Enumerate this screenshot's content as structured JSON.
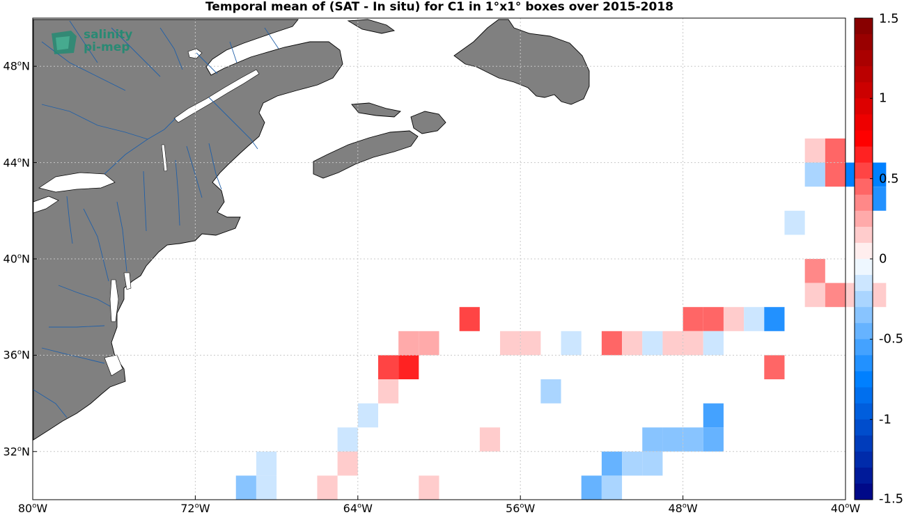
{
  "title": "Temporal mean of (SAT - In situ) for C1 in 1°x1° boxes over 2015-2018",
  "logo": {
    "line1": "salinity",
    "line2": "pi-mep",
    "icon": "salinity-pimep-logo-icon"
  },
  "colors": {
    "land": "#808080",
    "coast": "#000000",
    "rivers": "#1f5fa8",
    "grid": "#c8c8c8",
    "ocean": "#ffffff",
    "logo": "#1a8c72"
  },
  "chart_data": {
    "type": "heatmap",
    "units_note": "",
    "xlim": [
      -80,
      -40
    ],
    "ylim": [
      30,
      50
    ],
    "cell_size_deg": 1,
    "x_ticks": [
      {
        "value": -80,
        "label": "80",
        "suffix": "W"
      },
      {
        "value": -72,
        "label": "72",
        "suffix": "W"
      },
      {
        "value": -64,
        "label": "64",
        "suffix": "W"
      },
      {
        "value": -56,
        "label": "56",
        "suffix": "W"
      },
      {
        "value": -48,
        "label": "48",
        "suffix": "W"
      },
      {
        "value": -40,
        "label": "40",
        "suffix": "W"
      }
    ],
    "y_ticks": [
      {
        "value": 32,
        "label": "32",
        "suffix": "N"
      },
      {
        "value": 36,
        "label": "36",
        "suffix": "N"
      },
      {
        "value": 40,
        "label": "40",
        "suffix": "N"
      },
      {
        "value": 44,
        "label": "44",
        "suffix": "N"
      },
      {
        "value": 48,
        "label": "48",
        "suffix": "N"
      }
    ],
    "grid": true,
    "colorbar": {
      "range": [
        -1.5,
        1.5
      ],
      "steps": 30,
      "ticks": [
        {
          "value": 1.5,
          "label": "1.5"
        },
        {
          "value": 1,
          "label": "1"
        },
        {
          "value": 0.5,
          "label": "0.5"
        },
        {
          "value": 0,
          "label": "0"
        },
        {
          "value": -0.5,
          "label": "-0.5"
        },
        {
          "value": -1,
          "label": "-1"
        },
        {
          "value": -1.5,
          "label": "-1.5"
        }
      ]
    },
    "cells": [
      {
        "lon": -41.5,
        "lat": 44.5,
        "v": 0.15
      },
      {
        "lon": -40.5,
        "lat": 44.5,
        "v": 0.45
      },
      {
        "lon": -41.5,
        "lat": 43.5,
        "v": -0.25
      },
      {
        "lon": -40.5,
        "lat": 43.5,
        "v": 0.45
      },
      {
        "lon": -39.5,
        "lat": 43.5,
        "v": -0.75
      },
      {
        "lon": -38.5,
        "lat": 43.5,
        "v": -0.75
      },
      {
        "lon": -38.5,
        "lat": 42.5,
        "v": -0.65
      },
      {
        "lon": -42.5,
        "lat": 41.5,
        "v": -0.15
      },
      {
        "lon": -41.5,
        "lat": 39.5,
        "v": 0.35
      },
      {
        "lon": -41.5,
        "lat": 38.5,
        "v": 0.15
      },
      {
        "lon": -40.5,
        "lat": 38.5,
        "v": 0.35
      },
      {
        "lon": -39.5,
        "lat": 38.5,
        "v": 0.15
      },
      {
        "lon": -38.5,
        "lat": 38.5,
        "v": 0.15
      },
      {
        "lon": -58.5,
        "lat": 37.5,
        "v": 0.55
      },
      {
        "lon": -47.5,
        "lat": 37.5,
        "v": 0.45
      },
      {
        "lon": -46.5,
        "lat": 37.5,
        "v": 0.45
      },
      {
        "lon": -45.5,
        "lat": 37.5,
        "v": 0.15
      },
      {
        "lon": -44.5,
        "lat": 37.5,
        "v": -0.15
      },
      {
        "lon": -43.5,
        "lat": 37.5,
        "v": -0.65
      },
      {
        "lon": -61.5,
        "lat": 36.5,
        "v": 0.25
      },
      {
        "lon": -60.5,
        "lat": 36.5,
        "v": 0.25
      },
      {
        "lon": -56.5,
        "lat": 36.5,
        "v": 0.15
      },
      {
        "lon": -55.5,
        "lat": 36.5,
        "v": 0.15
      },
      {
        "lon": -53.5,
        "lat": 36.5,
        "v": -0.15
      },
      {
        "lon": -51.5,
        "lat": 36.5,
        "v": 0.45
      },
      {
        "lon": -50.5,
        "lat": 36.5,
        "v": 0.15
      },
      {
        "lon": -49.5,
        "lat": 36.5,
        "v": -0.15
      },
      {
        "lon": -48.5,
        "lat": 36.5,
        "v": 0.15
      },
      {
        "lon": -47.5,
        "lat": 36.5,
        "v": 0.15
      },
      {
        "lon": -46.5,
        "lat": 36.5,
        "v": -0.15
      },
      {
        "lon": -62.5,
        "lat": 35.5,
        "v": 0.55
      },
      {
        "lon": -61.5,
        "lat": 35.5,
        "v": 0.65
      },
      {
        "lon": -43.5,
        "lat": 35.5,
        "v": 0.45
      },
      {
        "lon": -62.5,
        "lat": 34.5,
        "v": 0.15
      },
      {
        "lon": -54.5,
        "lat": 34.5,
        "v": -0.25
      },
      {
        "lon": -63.5,
        "lat": 33.5,
        "v": -0.15
      },
      {
        "lon": -46.5,
        "lat": 33.5,
        "v": -0.55
      },
      {
        "lon": -64.5,
        "lat": 32.5,
        "v": -0.15
      },
      {
        "lon": -57.5,
        "lat": 32.5,
        "v": 0.15
      },
      {
        "lon": -49.5,
        "lat": 32.5,
        "v": -0.35
      },
      {
        "lon": -48.5,
        "lat": 32.5,
        "v": -0.35
      },
      {
        "lon": -47.5,
        "lat": 32.5,
        "v": -0.35
      },
      {
        "lon": -46.5,
        "lat": 32.5,
        "v": -0.45
      },
      {
        "lon": -68.5,
        "lat": 31.5,
        "v": -0.15
      },
      {
        "lon": -64.5,
        "lat": 31.5,
        "v": 0.15
      },
      {
        "lon": -51.5,
        "lat": 31.5,
        "v": -0.45
      },
      {
        "lon": -50.5,
        "lat": 31.5,
        "v": -0.25
      },
      {
        "lon": -49.5,
        "lat": 31.5,
        "v": -0.25
      },
      {
        "lon": -69.5,
        "lat": 30.5,
        "v": -0.35
      },
      {
        "lon": -68.5,
        "lat": 30.5,
        "v": -0.15
      },
      {
        "lon": -65.5,
        "lat": 30.5,
        "v": 0.15
      },
      {
        "lon": -60.5,
        "lat": 30.5,
        "v": 0.15
      },
      {
        "lon": -52.5,
        "lat": 30.5,
        "v": -0.45
      },
      {
        "lon": -51.5,
        "lat": 30.5,
        "v": -0.25
      }
    ]
  }
}
